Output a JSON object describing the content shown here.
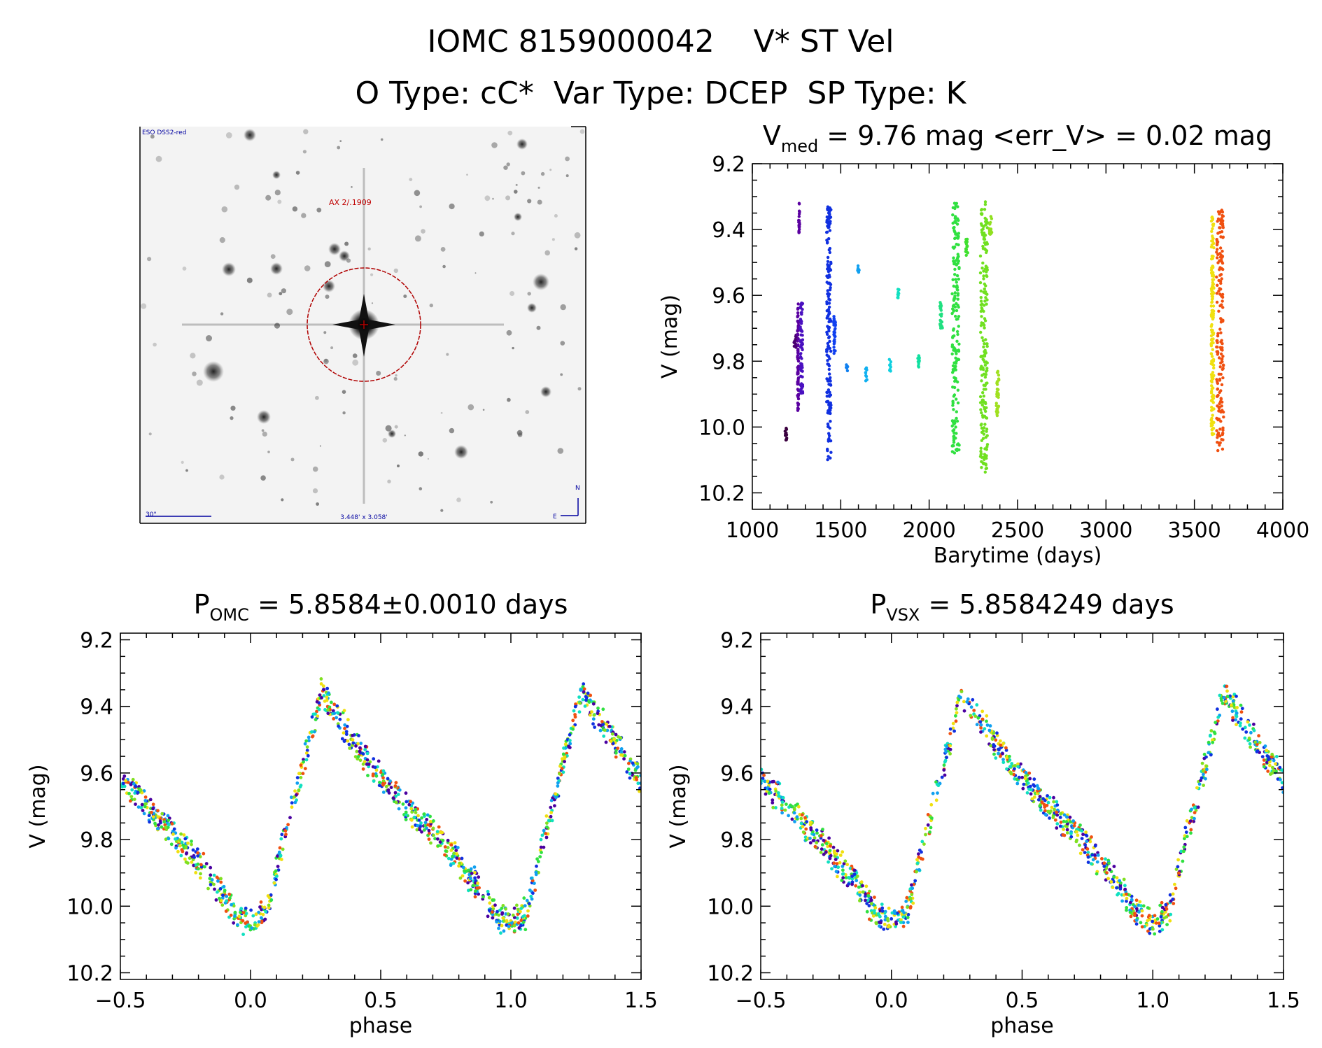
{
  "header": {
    "line1": "IOMC 8159000042    V* ST Vel",
    "line2": "O Type: cC*  Var Type: DCEP  SP Type: K"
  },
  "finder": {
    "survey_label": "ESO DSS2-red",
    "target_label": "AX 2/.1909",
    "scale_label": "30\"",
    "fov_label": "3.448' x 3.058'",
    "north_label": "N",
    "east_label": "E"
  },
  "chart_data": [
    {
      "type": "scatter",
      "id": "lightcurve-time",
      "title_main": "V",
      "title_sub": "med",
      "title_rest": " = 9.76 mag <err_V> = 0.02 mag",
      "xlabel": "Barytime (days)",
      "ylabel": "V (mag)",
      "xlim": [
        1000,
        4000
      ],
      "ylim": [
        10.25,
        9.2
      ],
      "y_inverted": true,
      "xticks": [
        1000,
        1500,
        2000,
        2500,
        3000,
        3500,
        4000
      ],
      "yticks": [
        9.2,
        9.4,
        9.6,
        9.8,
        10.0,
        10.2
      ],
      "colormap": "rainbow by time",
      "segments": [
        {
          "x": [
            1185,
            1195
          ],
          "ymin": 10.0,
          "ymax": 10.04,
          "color": "#3a003f"
        },
        {
          "x": [
            1235,
            1250
          ],
          "ymin": 9.72,
          "ymax": 9.76,
          "color": "#4a0070"
        },
        {
          "x": [
            1255,
            1262
          ],
          "ymin": 9.62,
          "ymax": 9.95,
          "color": "#5a00a0"
        },
        {
          "x": [
            1262,
            1268
          ],
          "ymin": 9.32,
          "ymax": 9.41,
          "color": "#5a00a0"
        },
        {
          "x": [
            1270,
            1285
          ],
          "ymin": 9.62,
          "ymax": 9.9,
          "color": "#4a10c0"
        },
        {
          "x": [
            1420,
            1445
          ],
          "ymin": 9.33,
          "ymax": 10.1,
          "color": "#1030e0"
        },
        {
          "x": [
            1460,
            1470
          ],
          "ymin": 9.65,
          "ymax": 9.78,
          "color": "#1040f0"
        },
        {
          "x": [
            1530,
            1540
          ],
          "ymin": 9.81,
          "ymax": 9.83,
          "color": "#1080f0"
        },
        {
          "x": [
            1595,
            1605
          ],
          "ymin": 9.51,
          "ymax": 9.53,
          "color": "#10a0f0"
        },
        {
          "x": [
            1640,
            1650
          ],
          "ymin": 9.82,
          "ymax": 9.86,
          "color": "#10b0f0"
        },
        {
          "x": [
            1775,
            1785
          ],
          "ymin": 9.79,
          "ymax": 9.83,
          "color": "#10d0e0"
        },
        {
          "x": [
            1820,
            1830
          ],
          "ymin": 9.58,
          "ymax": 9.61,
          "color": "#10e0c0"
        },
        {
          "x": [
            1935,
            1945
          ],
          "ymin": 9.78,
          "ymax": 9.82,
          "color": "#10e0a0"
        },
        {
          "x": [
            2060,
            2075
          ],
          "ymin": 9.62,
          "ymax": 9.7,
          "color": "#20e080"
        },
        {
          "x": [
            2130,
            2170
          ],
          "ymin": 9.32,
          "ymax": 10.08,
          "color": "#30e040"
        },
        {
          "x": [
            2205,
            2220
          ],
          "ymin": 9.42,
          "ymax": 9.48,
          "color": "#40e030"
        },
        {
          "x": [
            2290,
            2330
          ],
          "ymin": 9.31,
          "ymax": 10.14,
          "color": "#70e020"
        },
        {
          "x": [
            2340,
            2355
          ],
          "ymin": 9.36,
          "ymax": 9.42,
          "color": "#90e020"
        },
        {
          "x": [
            2380,
            2395
          ],
          "ymin": 9.83,
          "ymax": 9.97,
          "color": "#a0e020"
        },
        {
          "x": [
            3595,
            3610
          ],
          "ymin": 9.36,
          "ymax": 10.03,
          "color": "#f0e010"
        },
        {
          "x": [
            3625,
            3665
          ],
          "ymin": 9.34,
          "ymax": 10.08,
          "color": "#f05010"
        }
      ]
    },
    {
      "type": "scatter",
      "id": "phased-omc",
      "title_main": "P",
      "title_sub": "OMC",
      "title_rest": " = 5.8584±0.0010 days",
      "xlabel": "phase",
      "ylabel": "V (mag)",
      "xlim": [
        -0.5,
        1.5
      ],
      "ylim": [
        10.22,
        9.18
      ],
      "y_inverted": true,
      "xticks": [
        -0.5,
        0.0,
        0.5,
        1.0,
        1.5
      ],
      "yticks": [
        9.2,
        9.4,
        9.6,
        9.8,
        10.0,
        10.2
      ],
      "curve_phase": [
        0.0,
        0.06,
        0.12,
        0.2,
        0.27,
        0.35,
        0.45,
        0.55,
        0.65,
        0.75,
        0.85,
        0.95,
        1.0
      ],
      "curve_mag": [
        10.05,
        10.02,
        9.82,
        9.58,
        9.36,
        9.45,
        9.57,
        9.66,
        9.74,
        9.82,
        9.92,
        10.03,
        10.05
      ],
      "scatter_width": 0.035
    },
    {
      "type": "scatter",
      "id": "phased-vsx",
      "title_main": "P",
      "title_sub": "VSX",
      "title_rest": " = 5.8584249 days",
      "xlabel": "phase",
      "ylabel": "V (mag)",
      "xlim": [
        -0.5,
        1.5
      ],
      "ylim": [
        10.22,
        9.18
      ],
      "y_inverted": true,
      "xticks": [
        -0.5,
        0.0,
        0.5,
        1.0,
        1.5
      ],
      "yticks": [
        9.2,
        9.4,
        9.6,
        9.8,
        10.0,
        10.2
      ],
      "curve_phase": [
        0.0,
        0.06,
        0.12,
        0.2,
        0.27,
        0.35,
        0.45,
        0.55,
        0.65,
        0.75,
        0.85,
        0.95,
        1.0
      ],
      "curve_mag": [
        10.05,
        10.02,
        9.82,
        9.58,
        9.36,
        9.45,
        9.57,
        9.66,
        9.74,
        9.82,
        9.92,
        10.03,
        10.05
      ],
      "scatter_width": 0.035
    }
  ],
  "colors": {
    "point_palette": [
      "#4a00a0",
      "#1030e0",
      "#10a0f0",
      "#10e0c0",
      "#30e040",
      "#80e020",
      "#f0e010",
      "#f05010"
    ],
    "finder_circle": "#b00000",
    "finder_label": "#c00000",
    "finder_blue": "#0000a0"
  }
}
